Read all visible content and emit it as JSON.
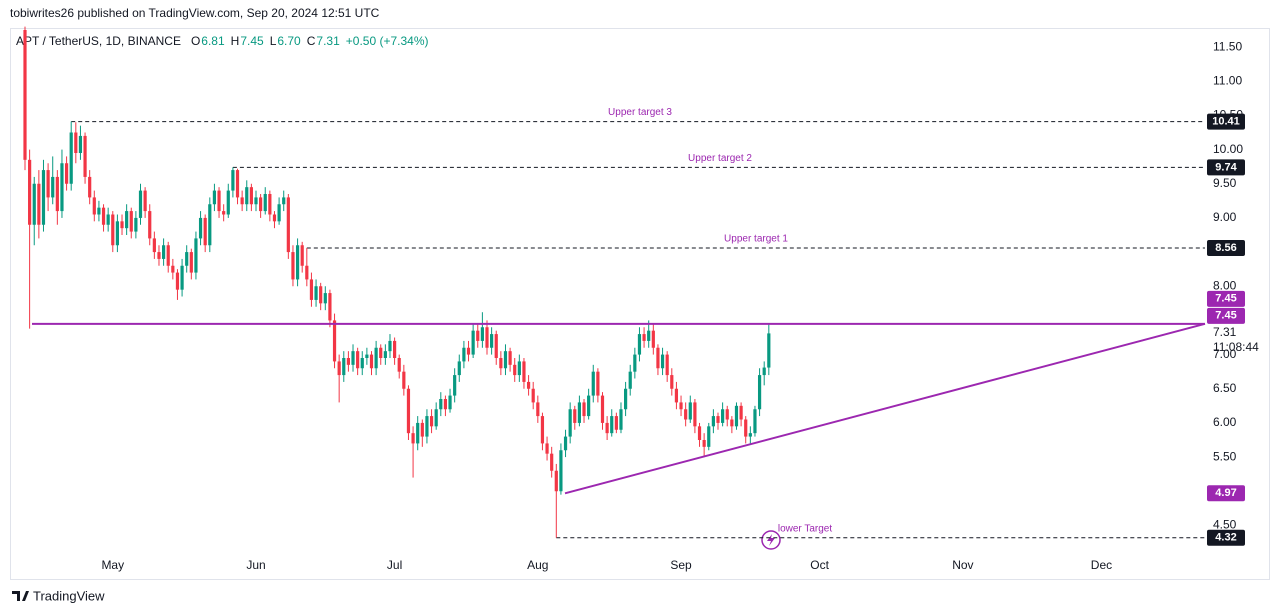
{
  "header": "tobiwrites26 published on TradingView.com, Sep 20, 2024 12:51 UTC",
  "footer": "TradingView",
  "chart_data": {
    "type": "candlestick",
    "symbol": "APT / TetherUS, 1D, BINANCE",
    "legend": [
      {
        "key": "O",
        "value": 6.81
      },
      {
        "key": "H",
        "value": 7.45
      },
      {
        "key": "L",
        "value": {
          "value": 6.7,
          "label": "6.70"
        }
      },
      {
        "key": "C",
        "value": 7.31
      }
    ],
    "change": "+0.50 (+7.34%)",
    "x_labels": [
      "May",
      "Jun",
      "Jul",
      "Aug",
      "Sep",
      "Oct",
      "Nov",
      "Dec"
    ],
    "ylim": [
      3.95,
      11.75
    ],
    "yticks": [
      {
        "value": 4.5,
        "label": "4.50"
      },
      {
        "value": 5.5,
        "label": "5.50"
      },
      {
        "value": 6,
        "label": "6.00"
      },
      {
        "value": 6.5,
        "label": "6.50"
      },
      {
        "value": 7,
        "label": "7.00"
      },
      {
        "value": 8,
        "label": "8.00"
      },
      {
        "value": 9,
        "label": "9.00"
      },
      {
        "value": 9.5,
        "label": "9.50"
      },
      {
        "value": 10,
        "label": "10.00"
      },
      {
        "value": 10.5,
        "label": "10.50"
      },
      {
        "value": 11,
        "label": "11.00"
      },
      {
        "value": 11.5,
        "label": "11.50"
      }
    ],
    "up_color": "#089981",
    "down_color": "#f23645",
    "line_color": "#9c27b0",
    "levels": [
      {
        "name": "Upper target 3",
        "value": 10.41
      },
      {
        "name": "Upper target 2",
        "value": 9.74
      },
      {
        "name": "Upper target 1",
        "value": 8.56
      },
      {
        "name": "lower Target",
        "value": 4.32
      }
    ],
    "resistance": 7.45,
    "trendline": [
      4.97,
      7.45
    ],
    "last_price": 7.31,
    "countdown": "11:08:44",
    "ohlc": [
      [
        11.75,
        11.8,
        9.7,
        9.85
      ],
      [
        9.85,
        10.0,
        7.38,
        8.9
      ],
      [
        8.9,
        9.6,
        8.6,
        9.5
      ],
      [
        9.5,
        9.7,
        8.7,
        8.9
      ],
      [
        8.9,
        9.85,
        8.8,
        9.7
      ],
      [
        9.7,
        9.8,
        9.1,
        9.3
      ],
      [
        9.3,
        9.9,
        9.2,
        9.6
      ],
      [
        9.6,
        9.7,
        8.9,
        9.1
      ],
      [
        9.1,
        10.0,
        9.0,
        9.8
      ],
      [
        9.8,
        9.9,
        9.4,
        9.5
      ],
      [
        9.5,
        10.41,
        9.4,
        10.25
      ],
      [
        10.25,
        10.4,
        9.8,
        9.95
      ],
      [
        9.95,
        10.35,
        9.85,
        10.2
      ],
      [
        10.2,
        10.25,
        9.5,
        9.6
      ],
      [
        9.6,
        9.7,
        9.2,
        9.3
      ],
      [
        9.3,
        9.4,
        8.95,
        9.05
      ],
      [
        9.05,
        9.25,
        8.95,
        9.15
      ],
      [
        9.15,
        9.2,
        8.8,
        8.9
      ],
      [
        8.9,
        9.15,
        8.8,
        9.05
      ],
      [
        9.05,
        9.1,
        8.5,
        8.6
      ],
      [
        8.6,
        9.05,
        8.5,
        8.95
      ],
      [
        8.95,
        9.05,
        8.75,
        8.85
      ],
      [
        8.85,
        9.2,
        8.75,
        9.1
      ],
      [
        9.1,
        9.15,
        8.7,
        8.8
      ],
      [
        8.8,
        9.1,
        8.7,
        9.0
      ],
      [
        9.0,
        9.5,
        8.9,
        9.4
      ],
      [
        9.4,
        9.45,
        9.0,
        9.1
      ],
      [
        9.1,
        9.2,
        8.6,
        8.7
      ],
      [
        8.7,
        8.8,
        8.4,
        8.5
      ],
      [
        8.5,
        8.6,
        8.3,
        8.4
      ],
      [
        8.4,
        8.7,
        8.3,
        8.6
      ],
      [
        8.6,
        8.65,
        8.2,
        8.3
      ],
      [
        8.3,
        8.4,
        8.1,
        8.2
      ],
      [
        8.2,
        8.25,
        7.8,
        7.95
      ],
      [
        7.95,
        8.4,
        7.85,
        8.3
      ],
      [
        8.3,
        8.6,
        8.2,
        8.5
      ],
      [
        8.5,
        8.55,
        8.1,
        8.2
      ],
      [
        8.2,
        8.8,
        8.1,
        8.7
      ],
      [
        8.7,
        9.1,
        8.6,
        9.0
      ],
      [
        9.0,
        9.05,
        8.5,
        8.6
      ],
      [
        8.6,
        9.3,
        8.5,
        9.2
      ],
      [
        9.2,
        9.5,
        9.1,
        9.4
      ],
      [
        9.4,
        9.45,
        9.0,
        9.1
      ],
      [
        9.1,
        9.2,
        8.95,
        9.05
      ],
      [
        9.05,
        9.5,
        9.0,
        9.4
      ],
      [
        9.4,
        9.74,
        9.3,
        9.7
      ],
      [
        9.7,
        9.72,
        9.2,
        9.3
      ],
      [
        9.3,
        9.4,
        9.1,
        9.2
      ],
      [
        9.2,
        9.55,
        9.1,
        9.45
      ],
      [
        9.45,
        9.5,
        9.1,
        9.2
      ],
      [
        9.2,
        9.4,
        9.1,
        9.3
      ],
      [
        9.3,
        9.35,
        9.0,
        9.1
      ],
      [
        9.1,
        9.45,
        9.05,
        9.35
      ],
      [
        9.35,
        9.4,
        8.95,
        9.05
      ],
      [
        9.05,
        9.1,
        8.85,
        8.95
      ],
      [
        8.95,
        9.3,
        8.9,
        9.2
      ],
      [
        9.2,
        9.4,
        9.1,
        9.3
      ],
      [
        9.3,
        9.35,
        8.4,
        8.5
      ],
      [
        8.5,
        8.6,
        8.0,
        8.1
      ],
      [
        8.1,
        8.7,
        8.0,
        8.6
      ],
      [
        8.6,
        8.65,
        8.2,
        8.3
      ],
      [
        8.3,
        8.56,
        8.0,
        8.1
      ],
      [
        8.1,
        8.2,
        7.7,
        7.8
      ],
      [
        7.8,
        8.1,
        7.7,
        8.0
      ],
      [
        8.0,
        8.05,
        7.65,
        7.75
      ],
      [
        7.75,
        8.0,
        7.65,
        7.9
      ],
      [
        7.9,
        7.95,
        7.4,
        7.5
      ],
      [
        7.5,
        7.6,
        6.8,
        6.9
      ],
      [
        6.9,
        7.0,
        6.3,
        6.7
      ],
      [
        6.7,
        7.05,
        6.6,
        6.95
      ],
      [
        6.95,
        7.05,
        6.75,
        6.85
      ],
      [
        6.85,
        7.15,
        6.75,
        7.05
      ],
      [
        7.05,
        7.1,
        6.7,
        6.8
      ],
      [
        6.8,
        7.05,
        6.7,
        6.95
      ],
      [
        6.95,
        7.1,
        6.85,
        7.0
      ],
      [
        7.0,
        7.05,
        6.7,
        6.8
      ],
      [
        6.8,
        7.2,
        6.7,
        7.1
      ],
      [
        7.1,
        7.15,
        6.85,
        6.95
      ],
      [
        6.95,
        7.15,
        6.85,
        7.05
      ],
      [
        7.05,
        7.3,
        6.95,
        7.2
      ],
      [
        7.2,
        7.25,
        6.85,
        6.95
      ],
      [
        6.95,
        7.0,
        6.65,
        6.75
      ],
      [
        6.75,
        6.85,
        6.4,
        6.5
      ],
      [
        6.5,
        6.55,
        5.75,
        5.85
      ],
      [
        5.85,
        5.95,
        5.2,
        5.7
      ],
      [
        5.7,
        6.1,
        5.6,
        6.0
      ],
      [
        6.0,
        6.05,
        5.65,
        5.8
      ],
      [
        5.8,
        6.2,
        5.7,
        6.1
      ],
      [
        6.1,
        6.2,
        5.85,
        5.95
      ],
      [
        5.95,
        6.3,
        5.9,
        6.2
      ],
      [
        6.2,
        6.45,
        6.1,
        6.35
      ],
      [
        6.35,
        6.4,
        6.1,
        6.2
      ],
      [
        6.2,
        6.5,
        6.15,
        6.4
      ],
      [
        6.4,
        6.8,
        6.3,
        6.7
      ],
      [
        6.7,
        7.0,
        6.6,
        6.9
      ],
      [
        6.9,
        7.2,
        6.8,
        7.1
      ],
      [
        7.1,
        7.2,
        6.9,
        7.0
      ],
      [
        7.0,
        7.45,
        6.95,
        7.35
      ],
      [
        7.35,
        7.45,
        7.1,
        7.2
      ],
      [
        7.2,
        7.62,
        7.1,
        7.4
      ],
      [
        7.4,
        7.5,
        7.0,
        7.1
      ],
      [
        7.1,
        7.4,
        7.0,
        7.3
      ],
      [
        7.3,
        7.35,
        6.85,
        6.95
      ],
      [
        6.95,
        7.05,
        6.7,
        6.8
      ],
      [
        6.8,
        7.15,
        6.7,
        7.05
      ],
      [
        7.05,
        7.1,
        6.75,
        6.85
      ],
      [
        6.85,
        6.95,
        6.6,
        6.7
      ],
      [
        6.7,
        7.0,
        6.6,
        6.9
      ],
      [
        6.9,
        6.95,
        6.5,
        6.6
      ],
      [
        6.6,
        6.7,
        6.4,
        6.5
      ],
      [
        6.5,
        6.6,
        6.2,
        6.3
      ],
      [
        6.3,
        6.4,
        6.0,
        6.1
      ],
      [
        6.1,
        6.15,
        5.6,
        5.7
      ],
      [
        5.7,
        5.8,
        5.45,
        5.55
      ],
      [
        5.55,
        5.65,
        5.2,
        5.3
      ],
      [
        5.3,
        5.4,
        4.32,
        5.0
      ],
      [
        5.0,
        5.7,
        4.95,
        5.6
      ],
      [
        5.6,
        5.9,
        5.5,
        5.8
      ],
      [
        5.8,
        6.3,
        5.7,
        6.2
      ],
      [
        6.2,
        6.25,
        5.9,
        6.0
      ],
      [
        6.0,
        6.4,
        5.95,
        6.3
      ],
      [
        6.3,
        6.35,
        6.0,
        6.1
      ],
      [
        6.1,
        6.5,
        6.05,
        6.4
      ],
      [
        6.4,
        6.85,
        6.3,
        6.75
      ],
      [
        6.75,
        6.8,
        6.3,
        6.4
      ],
      [
        6.4,
        6.45,
        5.9,
        6.0
      ],
      [
        6.0,
        6.1,
        5.75,
        5.85
      ],
      [
        5.85,
        6.2,
        5.8,
        6.1
      ],
      [
        6.1,
        6.15,
        5.85,
        5.9
      ],
      [
        5.9,
        6.3,
        5.85,
        6.2
      ],
      [
        6.2,
        6.6,
        6.1,
        6.5
      ],
      [
        6.5,
        6.85,
        6.4,
        6.75
      ],
      [
        6.75,
        7.1,
        6.65,
        7.0
      ],
      [
        7.0,
        7.4,
        6.9,
        7.3
      ],
      [
        7.3,
        7.4,
        7.1,
        7.2
      ],
      [
        7.2,
        7.5,
        7.1,
        7.35
      ],
      [
        7.35,
        7.45,
        7.0,
        7.1
      ],
      [
        7.1,
        7.15,
        6.7,
        6.8
      ],
      [
        6.8,
        7.1,
        6.7,
        7.0
      ],
      [
        7.0,
        7.05,
        6.6,
        6.7
      ],
      [
        6.7,
        6.8,
        6.4,
        6.5
      ],
      [
        6.5,
        6.6,
        6.2,
        6.3
      ],
      [
        6.3,
        6.4,
        6.1,
        6.2
      ],
      [
        6.2,
        6.3,
        5.95,
        6.05
      ],
      [
        6.05,
        6.4,
        6.0,
        6.3
      ],
      [
        6.3,
        6.35,
        5.85,
        5.95
      ],
      [
        5.95,
        6.0,
        5.65,
        5.75
      ],
      [
        5.75,
        5.85,
        5.5,
        5.65
      ],
      [
        5.65,
        6.0,
        5.6,
        5.95
      ],
      [
        5.95,
        6.2,
        5.85,
        6.1
      ],
      [
        6.1,
        6.15,
        5.9,
        6.0
      ],
      [
        6.0,
        6.3,
        5.95,
        6.2
      ],
      [
        6.2,
        6.25,
        5.95,
        6.05
      ],
      [
        6.05,
        6.1,
        5.85,
        5.95
      ],
      [
        5.95,
        6.3,
        5.9,
        6.25
      ],
      [
        6.25,
        6.3,
        5.95,
        6.05
      ],
      [
        6.05,
        6.1,
        5.7,
        5.8
      ],
      [
        5.8,
        5.95,
        5.7,
        5.85
      ],
      [
        5.85,
        6.25,
        5.8,
        6.2
      ],
      [
        6.2,
        6.8,
        6.1,
        6.7
      ],
      [
        6.7,
        6.9,
        6.55,
        6.81
      ],
      [
        6.81,
        7.45,
        6.7,
        7.31
      ]
    ]
  }
}
